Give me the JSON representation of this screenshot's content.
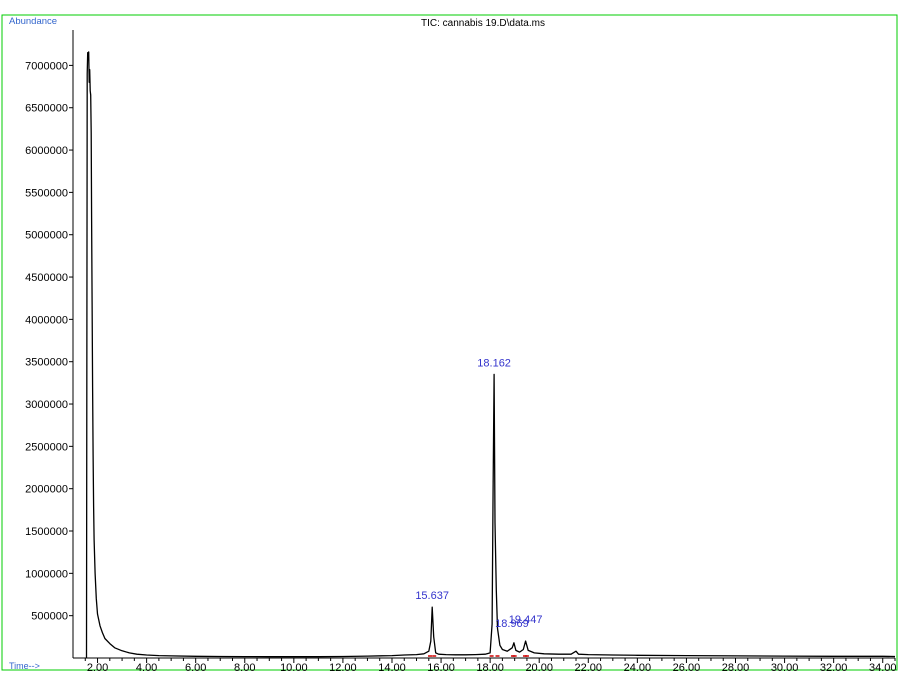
{
  "chart_data": {
    "type": "line",
    "title": "TIC: cannabis  19.D\\data.ms",
    "ylabel": "Abundance",
    "xlabel": "Time-->",
    "xlim": [
      1.0,
      34.5
    ],
    "ylim": [
      0,
      7300000
    ],
    "x_ticks": [
      2,
      4,
      6,
      8,
      10,
      12,
      14,
      16,
      18,
      20,
      22,
      24,
      26,
      28,
      30,
      32,
      34
    ],
    "x_tick_labels": [
      "2.00",
      "4.00",
      "6.00",
      "8.00",
      "10.00",
      "12.00",
      "14.00",
      "16.00",
      "18.00",
      "20.00",
      "22.00",
      "24.00",
      "26.00",
      "28.00",
      "30.00",
      "32.00",
      "34.00"
    ],
    "y_ticks": [
      500000,
      1000000,
      1500000,
      2000000,
      2500000,
      3000000,
      3500000,
      4000000,
      4500000,
      5000000,
      5500000,
      6000000,
      6500000,
      7000000
    ],
    "y_tick_labels": [
      "500000",
      "1000000",
      "1500000",
      "2000000",
      "2500000",
      "3000000",
      "3500000",
      "4000000",
      "4500000",
      "5000000",
      "5500000",
      "6000000",
      "6500000",
      "7000000"
    ],
    "series": [
      {
        "x": [
          1.55,
          1.58,
          1.6,
          1.62,
          1.64,
          1.66,
          1.68,
          1.7,
          1.72,
          1.74,
          1.76,
          1.78,
          1.8,
          1.82,
          1.84,
          1.86,
          1.9,
          1.95,
          2.0,
          2.1,
          2.2,
          2.3,
          2.5,
          2.7,
          3.0,
          3.3,
          3.6,
          4.0,
          4.5,
          5.0,
          6.0,
          7.0,
          8.0,
          9.0,
          10.0,
          11.0,
          12.0,
          13.0,
          14.0,
          14.5,
          15.0,
          15.3,
          15.5,
          15.58,
          15.637,
          15.7,
          15.78,
          15.9,
          16.2,
          16.6,
          17.0,
          17.4,
          17.8,
          18.0,
          18.08,
          18.12,
          18.162,
          18.2,
          18.25,
          18.3,
          18.4,
          18.5,
          18.7,
          18.9,
          18.969,
          19.05,
          19.2,
          19.35,
          19.447,
          19.55,
          19.8,
          20.2,
          20.8,
          21.3,
          21.5,
          21.6,
          22.0,
          23.0,
          24.0,
          26.0,
          28.0,
          30.0,
          32.0,
          34.0,
          34.5
        ],
        "y": [
          0,
          6900000,
          7150000,
          7100000,
          7160000,
          6800000,
          6950000,
          6700000,
          6650000,
          6200000,
          5200000,
          4200000,
          3200000,
          2400000,
          1800000,
          1400000,
          1000000,
          700000,
          520000,
          380000,
          300000,
          230000,
          170000,
          120000,
          85000,
          60000,
          45000,
          35000,
          28000,
          25000,
          20000,
          18000,
          16000,
          15000,
          15000,
          15000,
          18000,
          22000,
          28000,
          35000,
          40000,
          50000,
          80000,
          200000,
          600000,
          250000,
          60000,
          45000,
          40000,
          38000,
          38000,
          40000,
          45000,
          60000,
          400000,
          2000000,
          3350000,
          1600000,
          800000,
          350000,
          150000,
          100000,
          80000,
          120000,
          180000,
          90000,
          70000,
          100000,
          200000,
          90000,
          60000,
          50000,
          45000,
          45000,
          80000,
          45000,
          40000,
          35000,
          32000,
          28000,
          25000,
          22000,
          20000,
          20000,
          18000
        ]
      }
    ],
    "peak_labels": [
      {
        "x": 15.637,
        "y": 600000,
        "text": "15.637"
      },
      {
        "x": 18.162,
        "y": 3350000,
        "text": "18.162"
      },
      {
        "x": 18.969,
        "y": 180000,
        "text": "18.969"
      },
      {
        "x": 19.447,
        "y": 200000,
        "text": "19.447"
      }
    ],
    "integration_markers": [
      15.55,
      15.72,
      18.06,
      18.3,
      18.93,
      19.0,
      19.42,
      19.5
    ],
    "grid": false,
    "colors": {
      "frame": "#00cc00",
      "trace": "#000000",
      "peak_label": "#3333cc",
      "axis_label": "#3366cc",
      "marker": "#cc0000"
    }
  }
}
